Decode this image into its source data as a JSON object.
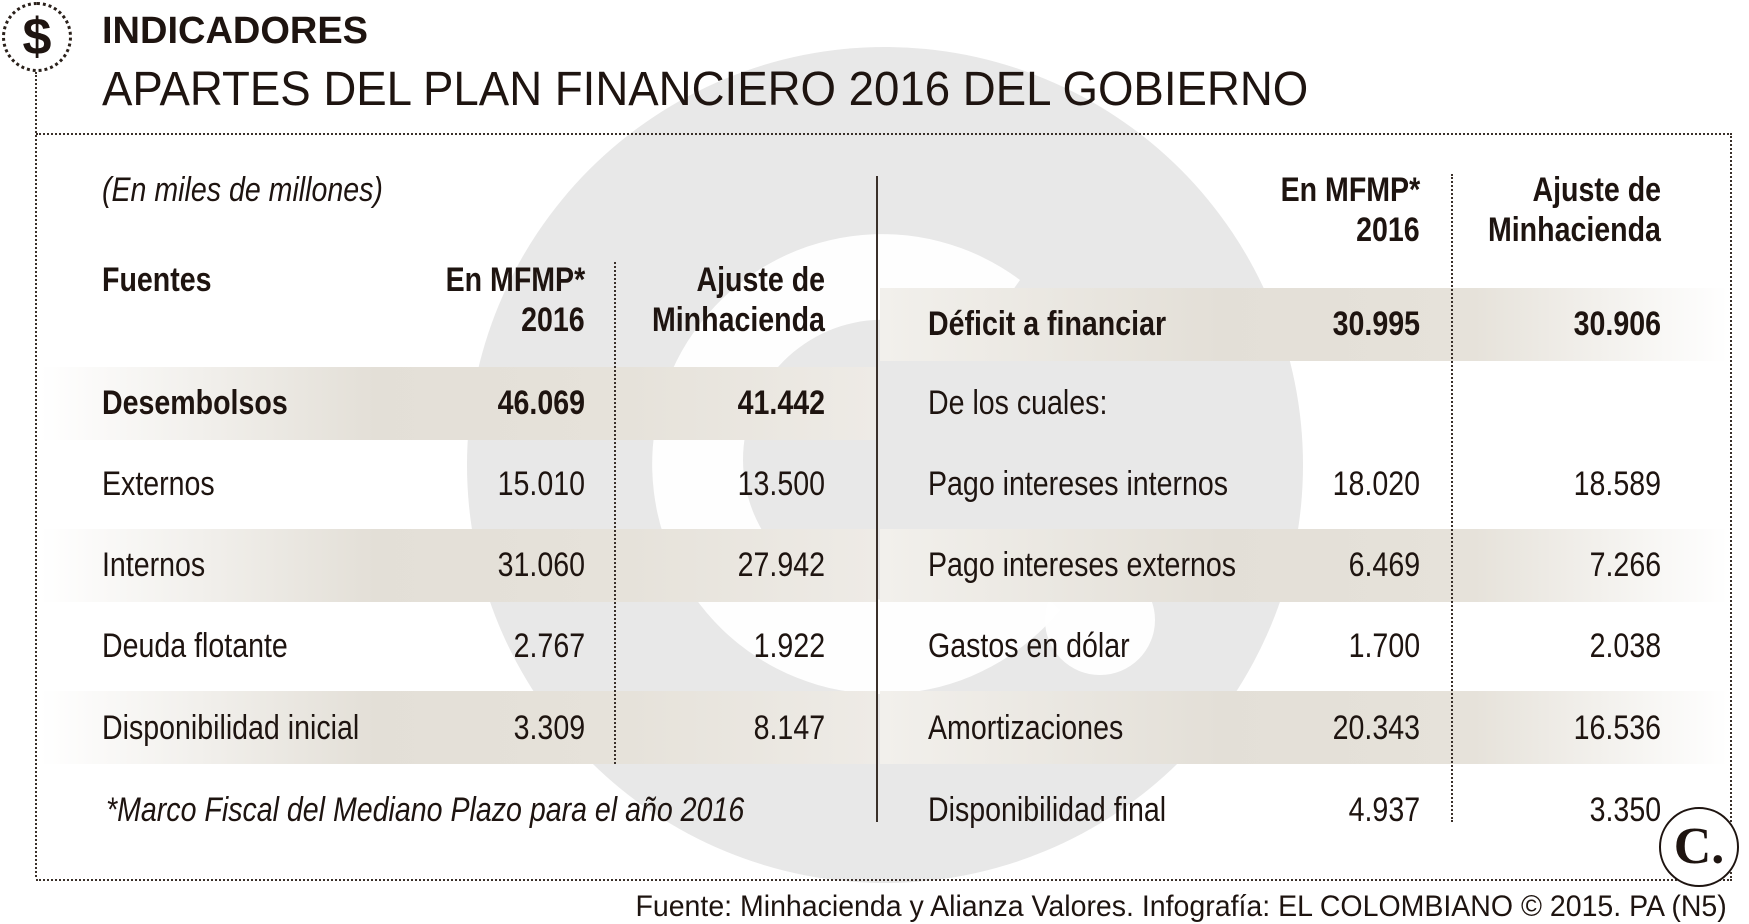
{
  "header": {
    "kicker": "INDICADORES",
    "title": "APARTES DEL PLAN FINANCIERO 2016 DEL GOBIERNO",
    "icon": "dollar-icon"
  },
  "left": {
    "unit_note": "(En miles de millones)",
    "columns": [
      "Fuentes",
      "En MFMP*",
      "2016",
      "Ajuste de",
      "Minhacienda"
    ],
    "rows": [
      {
        "label": "Desembolsos",
        "mfmp": "46.069",
        "ajuste": "41.442",
        "bold": true
      },
      {
        "label": "Externos",
        "mfmp": "15.010",
        "ajuste": "13.500"
      },
      {
        "label": "Internos",
        "mfmp": "31.060",
        "ajuste": "27.942"
      },
      {
        "label": "Deuda flotante",
        "mfmp": "2.767",
        "ajuste": "1.922"
      },
      {
        "label": "Disponibilidad inicial",
        "mfmp": "3.309",
        "ajuste": "8.147"
      }
    ],
    "footnote": "*Marco Fiscal del Mediano Plazo para el año 2016"
  },
  "right": {
    "columns": [
      "En MFMP*",
      "2016",
      "Ajuste de",
      "Minhacienda"
    ],
    "rows": [
      {
        "label": "Déficit a financiar",
        "mfmp": "30.995",
        "ajuste": "30.906",
        "bold": true
      },
      {
        "label": "De los cuales:",
        "mfmp": "",
        "ajuste": ""
      },
      {
        "label": "Pago intereses internos",
        "mfmp": "18.020",
        "ajuste": "18.589"
      },
      {
        "label": "Pago intereses externos",
        "mfmp": "6.469",
        "ajuste": "7.266"
      },
      {
        "label": "Gastos en dólar",
        "mfmp": "1.700",
        "ajuste": "2.038"
      },
      {
        "label": "Amortizaciones",
        "mfmp": "20.343",
        "ajuste": "16.536"
      },
      {
        "label": "Disponibilidad final",
        "mfmp": "4.937",
        "ajuste": "3.350"
      }
    ]
  },
  "footer": {
    "source": "Fuente: Minhacienda y Alianza Valores. Infografía: EL COLOMBIANO © 2015. PA (N5)"
  },
  "logo": {
    "text": "C."
  },
  "colors": {
    "text": "#1e1410",
    "band": "#e3dfd7",
    "watermark": "#e6e6e6"
  }
}
